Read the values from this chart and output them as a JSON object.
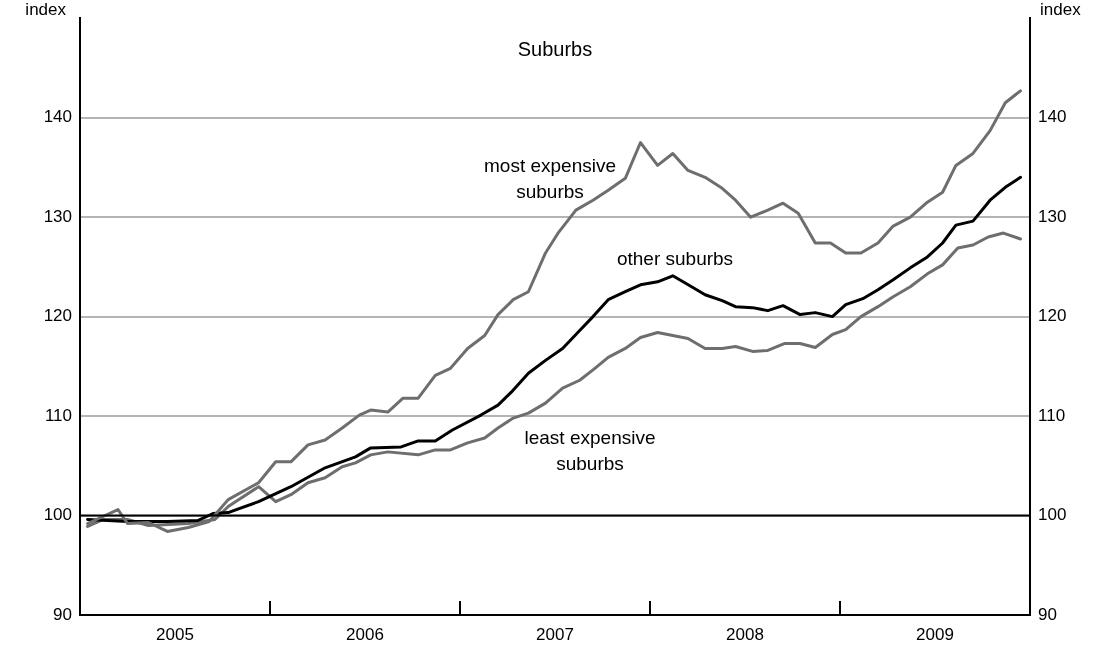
{
  "chart_data": {
    "type": "line",
    "title": "Suburbs",
    "ylabel": "index",
    "y2label": "index",
    "xlim": [
      2005,
      2010
    ],
    "xticks": [
      {
        "value": 2005,
        "label": null
      },
      {
        "value": 2005.5,
        "label": "2005"
      },
      {
        "value": 2006,
        "label": null
      },
      {
        "value": 2006.5,
        "label": "2006"
      },
      {
        "value": 2007,
        "label": null
      },
      {
        "value": 2007.5,
        "label": "2007"
      },
      {
        "value": 2008,
        "label": null
      },
      {
        "value": 2008.5,
        "label": "2008"
      },
      {
        "value": 2009,
        "label": null
      },
      {
        "value": 2009.5,
        "label": "2009"
      },
      {
        "value": 2010,
        "label": null
      }
    ],
    "ylim": [
      90,
      150
    ],
    "yticks": [
      90,
      100,
      110,
      120,
      130,
      140
    ],
    "y2lim": [
      90,
      150
    ],
    "y2ticks": [
      90,
      100,
      110,
      120,
      130,
      140
    ],
    "grid": "y",
    "legend": false,
    "marker": "none",
    "line_style": "solid",
    "ref_lines": [
      {
        "axis": "y",
        "value": 100,
        "label": null,
        "color": "#000000"
      }
    ],
    "series": [
      {
        "name": "most expensive suburbs",
        "color": "#6e6e6e",
        "x": [
          2005.04,
          2005.2,
          2005.25,
          2005.36,
          2005.46,
          2005.57,
          2005.68,
          2005.78,
          2005.94,
          2006.03,
          2006.11,
          2006.2,
          2006.29,
          2006.38,
          2006.47,
          2006.53,
          2006.62,
          2006.7,
          2006.78,
          2006.87,
          2006.95,
          2007.04,
          2007.13,
          2007.2,
          2007.28,
          2007.36,
          2007.45,
          2007.52,
          2007.61,
          2007.7,
          2007.78,
          2007.87,
          2007.95,
          2008.04,
          2008.12,
          2008.2,
          2008.29,
          2008.38,
          2008.45,
          2008.53,
          2008.62,
          2008.7,
          2008.78,
          2008.87,
          2008.95,
          2009.03,
          2009.11,
          2009.2,
          2009.28,
          2009.37,
          2009.46,
          2009.54,
          2009.61,
          2009.7,
          2009.79,
          2009.87,
          2009.95
        ],
        "values": [
          99.2,
          100.6,
          99.2,
          99.3,
          98.4,
          98.8,
          99.4,
          101.6,
          103.3,
          105.4,
          105.4,
          107.1,
          107.6,
          108.8,
          110.1,
          110.6,
          110.4,
          111.8,
          111.8,
          114.1,
          114.8,
          116.8,
          118.1,
          120.2,
          121.7,
          122.5,
          126.4,
          128.5,
          130.7,
          131.7,
          132.7,
          133.9,
          137.5,
          135.2,
          136.4,
          134.7,
          134.0,
          132.9,
          131.7,
          130.0,
          130.7,
          131.4,
          130.4,
          127.4,
          127.4,
          126.4,
          126.4,
          127.4,
          129.1,
          130.0,
          131.5,
          132.5,
          135.2,
          136.4,
          138.7,
          141.5,
          142.7
        ]
      },
      {
        "name": "other suburbs",
        "color": "#000000",
        "x": [
          2005.04,
          2005.25,
          2005.46,
          2005.62,
          2005.7,
          2005.78,
          2005.94,
          2006.11,
          2006.29,
          2006.45,
          2006.53,
          2006.69,
          2006.78,
          2006.87,
          2006.96,
          2007.11,
          2007.2,
          2007.27,
          2007.36,
          2007.45,
          2007.54,
          2007.63,
          2007.7,
          2007.78,
          2007.87,
          2007.95,
          2008.04,
          2008.12,
          2008.21,
          2008.29,
          2008.38,
          2008.45,
          2008.54,
          2008.62,
          2008.7,
          2008.79,
          2008.87,
          2008.96,
          2009.03,
          2009.12,
          2009.2,
          2009.28,
          2009.37,
          2009.46,
          2009.54,
          2009.61,
          2009.7,
          2009.79,
          2009.87,
          2009.95
        ],
        "values": [
          99.6,
          99.4,
          99.4,
          99.5,
          100.2,
          100.3,
          101.4,
          102.9,
          104.8,
          105.9,
          106.8,
          106.9,
          107.5,
          107.5,
          108.6,
          110.1,
          111.1,
          112.4,
          114.3,
          115.6,
          116.8,
          118.6,
          120.0,
          121.7,
          122.5,
          123.2,
          123.5,
          124.1,
          123.1,
          122.2,
          121.6,
          121.0,
          120.9,
          120.6,
          121.1,
          120.2,
          120.4,
          120.0,
          121.2,
          121.8,
          122.7,
          123.7,
          124.9,
          126.0,
          127.4,
          129.2,
          129.6,
          131.7,
          133.0,
          134.0
        ]
      },
      {
        "name": "least expensive suburbs",
        "color": "#6e6e6e",
        "x": [
          2005.04,
          2005.12,
          2005.25,
          2005.36,
          2005.57,
          2005.71,
          2005.78,
          2005.94,
          2006.03,
          2006.11,
          2006.2,
          2006.29,
          2006.38,
          2006.45,
          2006.53,
          2006.62,
          2006.78,
          2006.87,
          2006.95,
          2007.04,
          2007.13,
          2007.2,
          2007.28,
          2007.36,
          2007.45,
          2007.54,
          2007.63,
          2007.71,
          2007.78,
          2007.87,
          2007.95,
          2008.04,
          2008.12,
          2008.2,
          2008.29,
          2008.38,
          2008.45,
          2008.54,
          2008.62,
          2008.71,
          2008.79,
          2008.87,
          2008.96,
          2009.03,
          2009.11,
          2009.2,
          2009.28,
          2009.37,
          2009.46,
          2009.54,
          2009.62,
          2009.7,
          2009.78,
          2009.86,
          2009.95
        ],
        "values": [
          98.9,
          99.6,
          99.6,
          99.0,
          99.2,
          99.6,
          100.9,
          102.9,
          101.4,
          102.1,
          103.3,
          103.8,
          104.9,
          105.3,
          106.1,
          106.4,
          106.1,
          106.6,
          106.6,
          107.3,
          107.8,
          108.8,
          109.8,
          110.3,
          111.3,
          112.8,
          113.6,
          114.8,
          115.9,
          116.8,
          117.9,
          118.4,
          118.1,
          117.8,
          116.8,
          116.8,
          117.0,
          116.5,
          116.6,
          117.3,
          117.3,
          116.9,
          118.2,
          118.7,
          120.0,
          121.0,
          122.0,
          123.0,
          124.3,
          125.2,
          126.9,
          127.2,
          128.0,
          128.4,
          127.8
        ]
      }
    ]
  }
}
